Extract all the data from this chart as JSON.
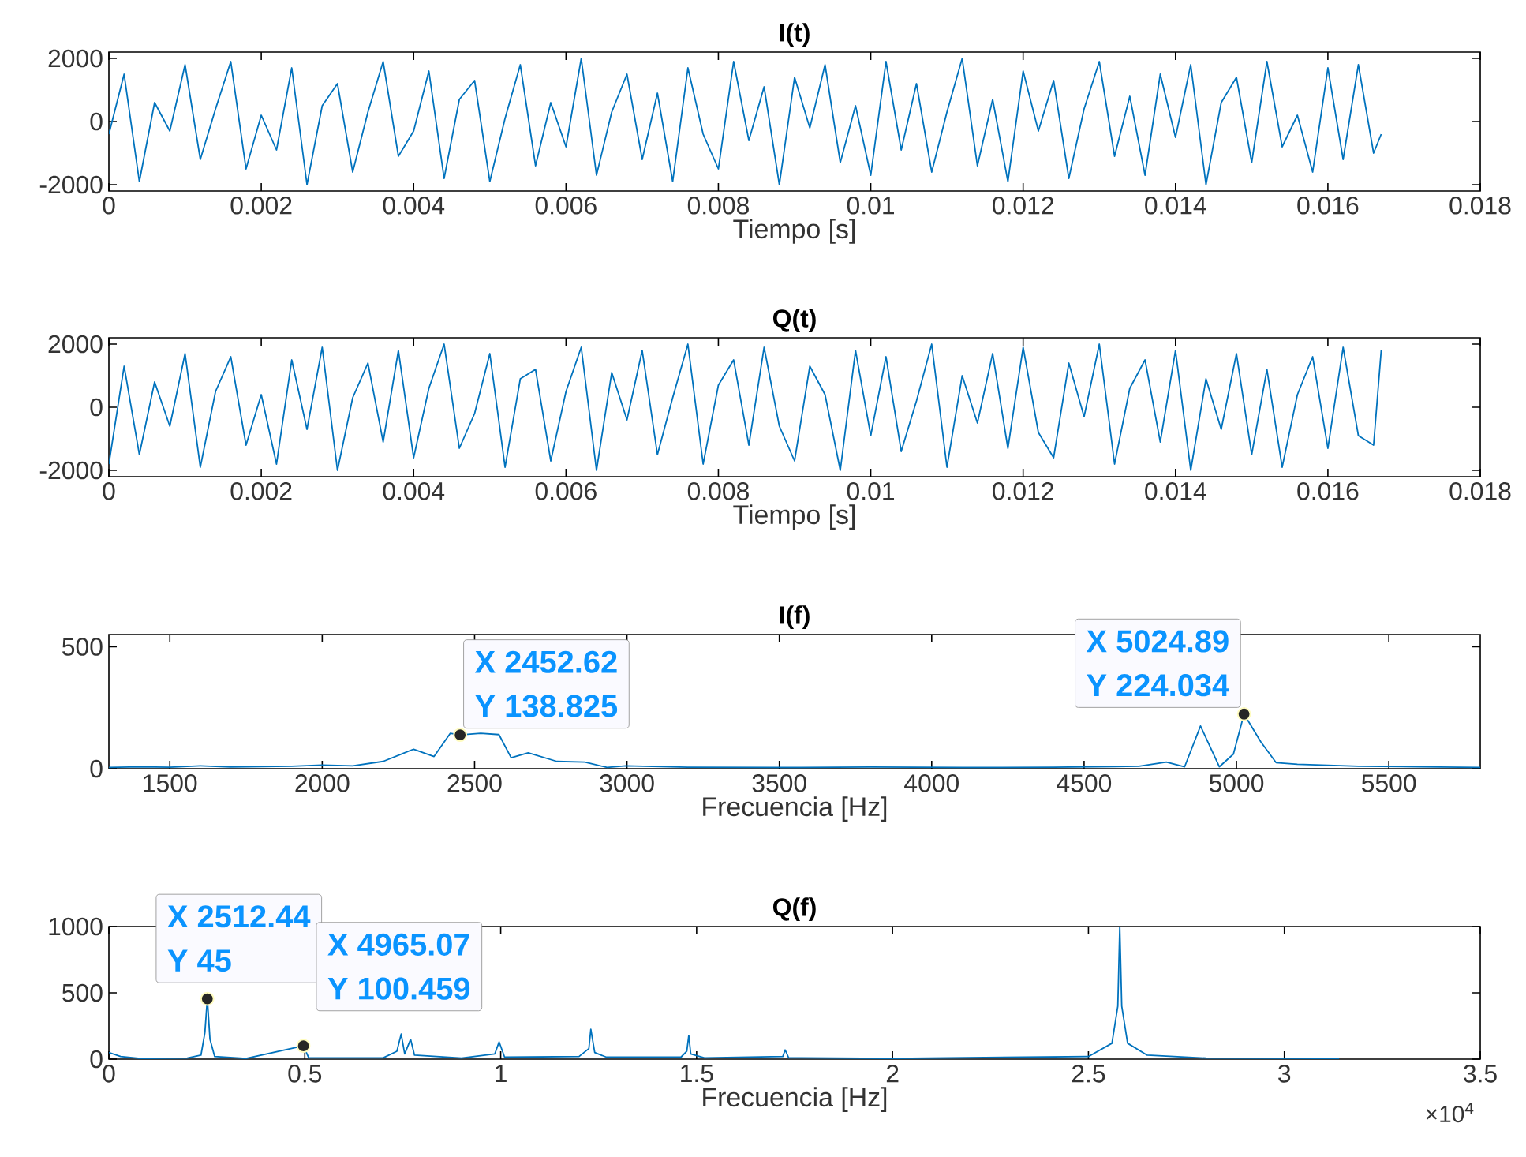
{
  "chart_data": [
    {
      "type": "line",
      "title": "I(t)",
      "xlabel": "Tiempo [s]",
      "color": "#0072bd",
      "xlim": [
        0,
        0.018
      ],
      "ylim": [
        -2200,
        2200
      ],
      "xticks": [
        0,
        0.002,
        0.004,
        0.006,
        0.008,
        0.01,
        0.012,
        0.014,
        0.016,
        0.018
      ],
      "yticks": [
        -2000,
        0,
        2000
      ],
      "x": [
        0,
        0.0002,
        0.0004,
        0.0006,
        0.0008,
        0.001,
        0.0012,
        0.0014,
        0.0016,
        0.0018,
        0.002,
        0.0022,
        0.0024,
        0.0026,
        0.0028,
        0.003,
        0.0032,
        0.0034,
        0.0036,
        0.0038,
        0.004,
        0.0042,
        0.0044,
        0.0046,
        0.0048,
        0.005,
        0.0052,
        0.0054,
        0.0056,
        0.0058,
        0.006,
        0.0062,
        0.0064,
        0.0066,
        0.0068,
        0.007,
        0.0072,
        0.0074,
        0.0076,
        0.0078,
        0.008,
        0.0082,
        0.0084,
        0.0086,
        0.0088,
        0.009,
        0.0092,
        0.0094,
        0.0096,
        0.0098,
        0.01,
        0.0102,
        0.0104,
        0.0106,
        0.0108,
        0.011,
        0.0112,
        0.0114,
        0.0116,
        0.0118,
        0.012,
        0.0122,
        0.0124,
        0.0126,
        0.0128,
        0.013,
        0.0132,
        0.0134,
        0.0136,
        0.0138,
        0.014,
        0.0142,
        0.0144,
        0.0146,
        0.0148,
        0.015,
        0.0152,
        0.0154,
        0.0156,
        0.0158,
        0.016,
        0.0162,
        0.0164,
        0.0166,
        0.0167
      ],
      "values": [
        -400,
        1500,
        -1900,
        600,
        -300,
        1800,
        -1200,
        400,
        1900,
        -1500,
        200,
        -900,
        1700,
        -2000,
        500,
        1200,
        -1600,
        300,
        1900,
        -1100,
        -300,
        1600,
        -1800,
        700,
        1300,
        -1900,
        100,
        1800,
        -1400,
        600,
        -800,
        2000,
        -1700,
        300,
        1500,
        -1200,
        900,
        -1900,
        1700,
        -400,
        -1500,
        1900,
        -600,
        1100,
        -2000,
        1400,
        -200,
        1800,
        -1300,
        500,
        -1700,
        1900,
        -900,
        1200,
        -1600,
        300,
        2000,
        -1400,
        700,
        -1900,
        1600,
        -300,
        1300,
        -1800,
        400,
        1900,
        -1100,
        800,
        -1700,
        1500,
        -500,
        1800,
        -2000,
        600,
        1400,
        -1300,
        1900,
        -800,
        200,
        -1600,
        1700,
        -1200,
        1800,
        -1000,
        -400
      ]
    },
    {
      "type": "line",
      "title": "Q(t)",
      "xlabel": "Tiempo [s]",
      "color": "#0072bd",
      "xlim": [
        0,
        0.018
      ],
      "ylim": [
        -2200,
        2200
      ],
      "xticks": [
        0,
        0.002,
        0.004,
        0.006,
        0.008,
        0.01,
        0.012,
        0.014,
        0.016,
        0.018
      ],
      "yticks": [
        -2000,
        0,
        2000
      ],
      "x": [
        0,
        0.0002,
        0.0004,
        0.0006,
        0.0008,
        0.001,
        0.0012,
        0.0014,
        0.0016,
        0.0018,
        0.002,
        0.0022,
        0.0024,
        0.0026,
        0.0028,
        0.003,
        0.0032,
        0.0034,
        0.0036,
        0.0038,
        0.004,
        0.0042,
        0.0044,
        0.0046,
        0.0048,
        0.005,
        0.0052,
        0.0054,
        0.0056,
        0.0058,
        0.006,
        0.0062,
        0.0064,
        0.0066,
        0.0068,
        0.007,
        0.0072,
        0.0074,
        0.0076,
        0.0078,
        0.008,
        0.0082,
        0.0084,
        0.0086,
        0.0088,
        0.009,
        0.0092,
        0.0094,
        0.0096,
        0.0098,
        0.01,
        0.0102,
        0.0104,
        0.0106,
        0.0108,
        0.011,
        0.0112,
        0.0114,
        0.0116,
        0.0118,
        0.012,
        0.0122,
        0.0124,
        0.0126,
        0.0128,
        0.013,
        0.0132,
        0.0134,
        0.0136,
        0.0138,
        0.014,
        0.0142,
        0.0144,
        0.0146,
        0.0148,
        0.015,
        0.0152,
        0.0154,
        0.0156,
        0.0158,
        0.016,
        0.0162,
        0.0164,
        0.0166,
        0.0167
      ],
      "values": [
        -1800,
        1300,
        -1500,
        800,
        -600,
        1700,
        -1900,
        500,
        1600,
        -1200,
        400,
        -1800,
        1500,
        -700,
        1900,
        -2000,
        300,
        1400,
        -1100,
        1800,
        -1600,
        600,
        2000,
        -1300,
        -200,
        1700,
        -1900,
        900,
        1200,
        -1700,
        500,
        1900,
        -2000,
        1100,
        -400,
        1800,
        -1500,
        300,
        2000,
        -1800,
        700,
        1500,
        -1200,
        1900,
        -600,
        -1700,
        1300,
        400,
        -2000,
        1800,
        -900,
        1600,
        -1400,
        200,
        2000,
        -1900,
        1000,
        -500,
        1700,
        -1300,
        1900,
        -800,
        -1600,
        1400,
        -300,
        2000,
        -1800,
        600,
        1500,
        -1100,
        1800,
        -2000,
        900,
        -700,
        1700,
        -1500,
        1200,
        -1900,
        400,
        1600,
        -1300,
        1900,
        -900,
        -1200,
        1800
      ]
    },
    {
      "type": "line",
      "title": "I(f)",
      "xlabel": "Frecuencia [Hz]",
      "color": "#0072bd",
      "xlim": [
        1300,
        5800
      ],
      "ylim": [
        0,
        550
      ],
      "xticks": [
        1500,
        2000,
        2500,
        3000,
        3500,
        4000,
        4500,
        5000,
        5500
      ],
      "yticks": [
        0,
        500
      ],
      "x": [
        1300,
        1400,
        1500,
        1600,
        1700,
        1800,
        1900,
        2000,
        2100,
        2200,
        2300,
        2367,
        2420,
        2452.62,
        2520,
        2580,
        2620,
        2676,
        2770,
        2862,
        2935,
        2996,
        3200,
        3500,
        3800,
        4100,
        4400,
        4600,
        4680,
        4770,
        4830,
        4882,
        4944,
        4990,
        5024.89,
        5080,
        5130,
        5200,
        5400,
        5600,
        5800
      ],
      "values": [
        5,
        8,
        6,
        12,
        7,
        9,
        10,
        15,
        12,
        30,
        80,
        50,
        145,
        138.825,
        145,
        140,
        45,
        65,
        30,
        27,
        5,
        12,
        6,
        5,
        7,
        5,
        6,
        9,
        10,
        27,
        8,
        175,
        8,
        60,
        224.034,
        110,
        25,
        18,
        10,
        8,
        5
      ],
      "annotations": [
        {
          "text": "X 2452.62",
          "x": 2452.62,
          "y": 138.825
        },
        {
          "text": "Y 138.825",
          "x": 2452.62,
          "y": 138.825
        },
        {
          "text": "X 5024.89",
          "x": 5024.89,
          "y": 224.034
        },
        {
          "text": "Y 224.034",
          "x": 5024.89,
          "y": 224.034
        }
      ]
    },
    {
      "type": "line",
      "title": "Q(f)",
      "xlabel": "Frecuencia [Hz]",
      "color": "#0072bd",
      "xlim": [
        0,
        3.5
      ],
      "ylim": [
        0,
        1000
      ],
      "xticks": [
        0,
        0.5,
        1,
        1.5,
        2,
        2.5,
        3,
        3.5
      ],
      "yticks": [
        0,
        500,
        1000
      ],
      "x": [
        0,
        0.03,
        0.08,
        0.2,
        0.235,
        0.245,
        0.251244,
        0.258,
        0.27,
        0.35,
        0.496507,
        0.51,
        0.7,
        0.735,
        0.746,
        0.755,
        0.77,
        0.78,
        0.9,
        0.985,
        0.996,
        1.01,
        1.2,
        1.225,
        1.23,
        1.24,
        1.27,
        1.46,
        1.475,
        1.48,
        1.485,
        1.52,
        1.72,
        1.726,
        1.735,
        2,
        2.5,
        2.56,
        2.575,
        2.58,
        2.585,
        2.6,
        2.65,
        2.8,
        3.14
      ],
      "values": [
        50,
        20,
        5,
        8,
        30,
        200,
        455,
        150,
        20,
        5,
        100.459,
        10,
        10,
        60,
        190,
        40,
        150,
        30,
        8,
        40,
        130,
        15,
        20,
        80,
        225,
        50,
        15,
        15,
        60,
        180,
        40,
        10,
        20,
        70,
        10,
        5,
        20,
        120,
        400,
        1000,
        400,
        120,
        30,
        8,
        5
      ],
      "annotations": [
        {
          "text": "X 2512.44",
          "x": 0.251244,
          "y": 455
        },
        {
          "text": "Y 45",
          "x": 0.251244,
          "y": 455
        },
        {
          "text": "X 4965.07",
          "x": 0.496507,
          "y": 100.459
        },
        {
          "text": "Y 100.459",
          "x": 0.496507,
          "y": 100.459
        },
        "×10$^{4}$"
      ]
    }
  ]
}
